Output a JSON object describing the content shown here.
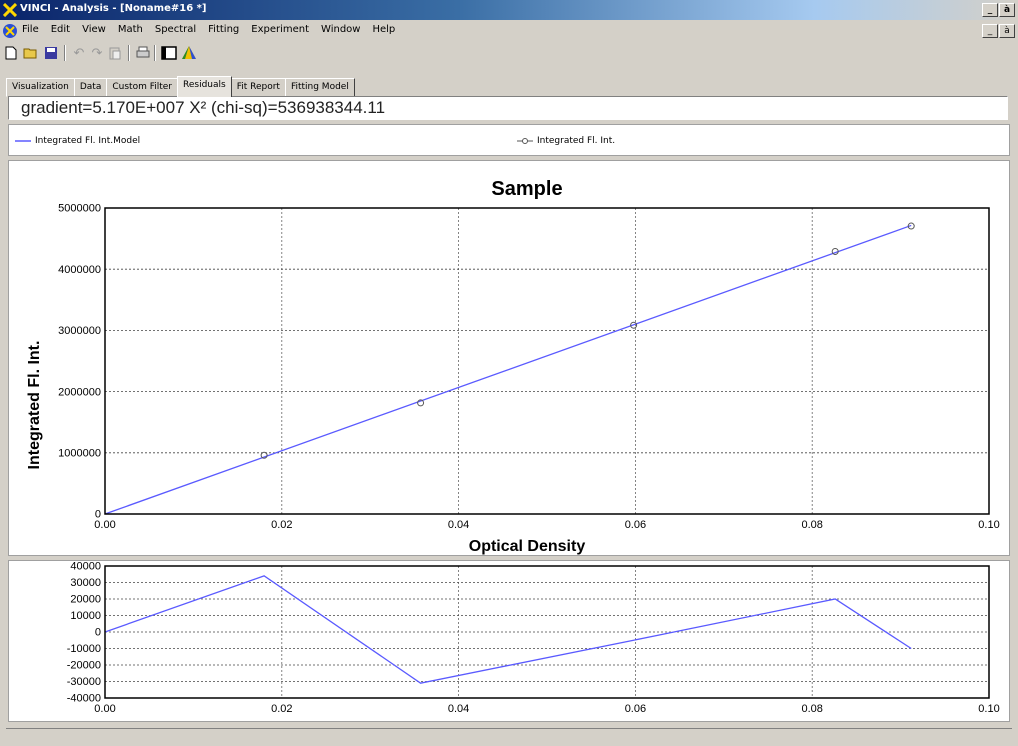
{
  "window": {
    "title": "VINCI - Analysis - [Noname#16 *]",
    "controls": [
      "_",
      "à",
      "×"
    ]
  },
  "menubar": {
    "items": [
      "File",
      "Edit",
      "View",
      "Math",
      "Spectral",
      "Fitting",
      "Experiment",
      "Window",
      "Help"
    ],
    "doc_controls": [
      "_",
      "à",
      "×"
    ]
  },
  "toolbar": {
    "icons": [
      "new-file-icon",
      "open-folder-icon",
      "save-icon",
      "undo-icon",
      "redo-icon",
      "paste-icon",
      "print-icon",
      "panel-icon",
      "prism-icon"
    ]
  },
  "tabs": [
    {
      "label": "Visualization",
      "active": false
    },
    {
      "label": "Data",
      "active": false
    },
    {
      "label": "Custom Filter",
      "active": false
    },
    {
      "label": "Residuals",
      "active": true
    },
    {
      "label": "Fit Report",
      "active": false
    },
    {
      "label": "Fitting Model",
      "active": false
    }
  ],
  "fit_info": "gradient=5.170E+007    X² (chi-sq)=536938344.11",
  "legend": {
    "model_label": "Integrated Fl. Int.Model",
    "data_label": "Integrated Fl. Int."
  },
  "colors": {
    "line": "#5a5aff",
    "marker": "#555555",
    "background": "#d4d0c8"
  },
  "chart_data": [
    {
      "type": "scatter",
      "title": "Sample",
      "xlabel": "Optical Density",
      "ylabel": "Integrated Fl. Int.",
      "xlim": [
        0,
        0.1
      ],
      "ylim": [
        0,
        5000000
      ],
      "x_ticks": [
        "0.00",
        "0.02",
        "0.04",
        "0.06",
        "0.08",
        "0.10"
      ],
      "y_ticks": [
        "0",
        "1000000",
        "2000000",
        "3000000",
        "4000000",
        "5000000"
      ],
      "grid": true,
      "series": [
        {
          "name": "Integrated Fl. Int.Model",
          "kind": "line",
          "x": [
            0,
            0.0912
          ],
          "y": [
            0,
            4715040
          ]
        },
        {
          "name": "Integrated Fl. Int.",
          "kind": "markers",
          "x": [
            0.018,
            0.0357,
            0.0598,
            0.0826,
            0.0912
          ],
          "y": [
            960000,
            1815000,
            3085000,
            4290000,
            4705000
          ]
        }
      ]
    },
    {
      "type": "line",
      "title": "",
      "xlabel": "",
      "ylabel": "",
      "xlim": [
        0,
        0.1
      ],
      "ylim": [
        -40000,
        40000
      ],
      "x_ticks": [
        "0.00",
        "0.02",
        "0.04",
        "0.06",
        "0.08",
        "0.10"
      ],
      "y_ticks": [
        "40000",
        "30000",
        "20000",
        "10000",
        "0",
        "-10000",
        "-20000",
        "-30000",
        "-40000"
      ],
      "grid": true,
      "series": [
        {
          "name": "Residuals",
          "x": [
            0,
            0.018,
            0.0357,
            0.0598,
            0.0826,
            0.0912
          ],
          "y": [
            0,
            34000,
            -31000,
            -5000,
            20000,
            -10000
          ]
        }
      ]
    }
  ]
}
